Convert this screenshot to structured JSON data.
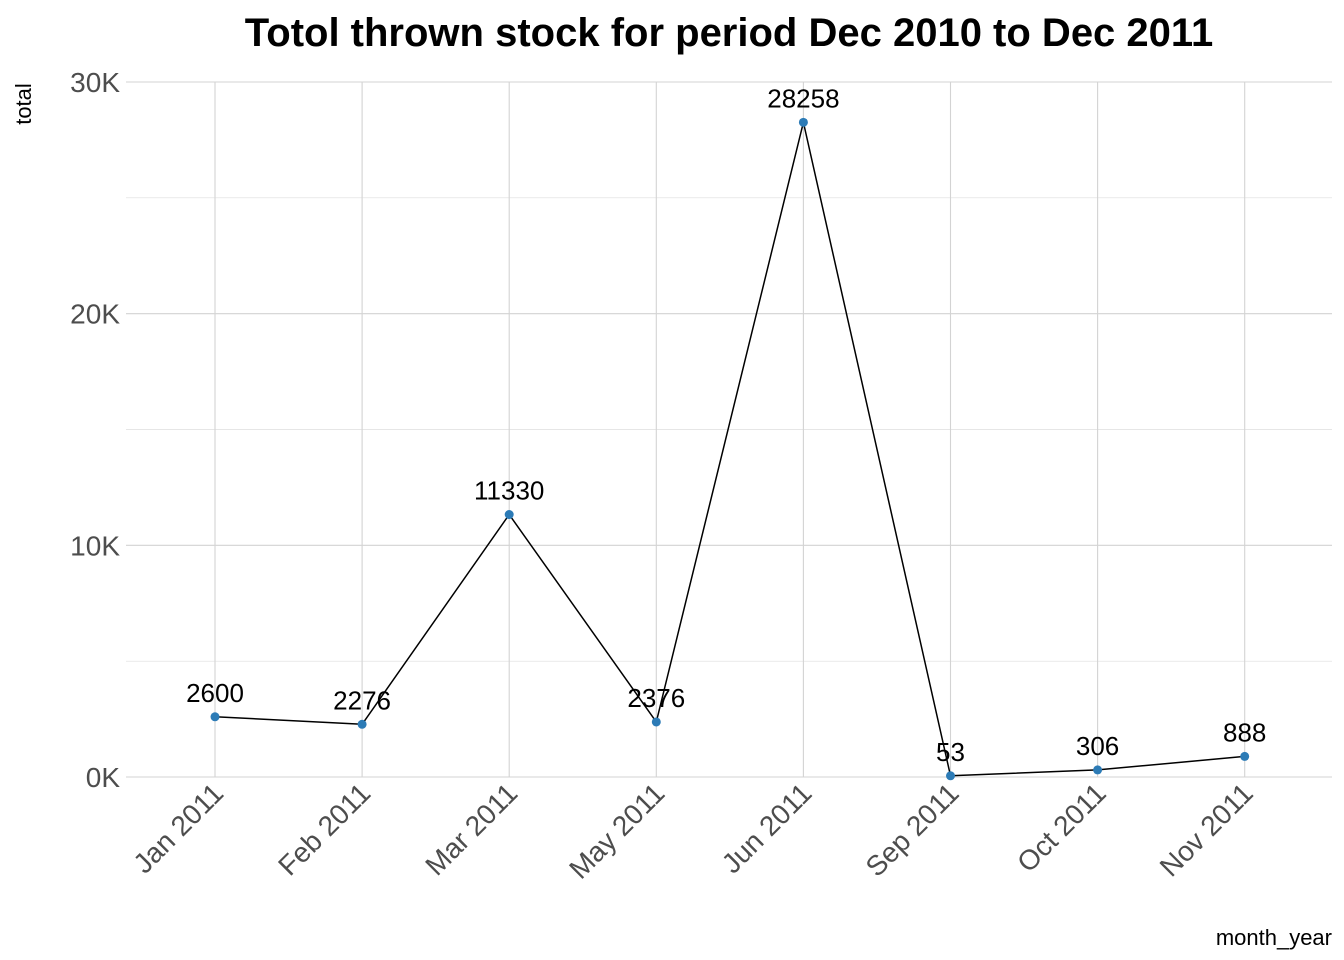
{
  "chart_data": {
    "type": "line",
    "title": "Totol thrown stock for period Dec 2010 to Dec 2011",
    "xlabel": "month_year",
    "ylabel": "total",
    "categories": [
      "Jan 2011",
      "Feb 2011",
      "Mar 2011",
      "May 2011",
      "Jun 2011",
      "Sep 2011",
      "Oct 2011",
      "Nov 2011"
    ],
    "values": [
      2600,
      2276,
      11330,
      2376,
      28258,
      53,
      306,
      888
    ],
    "data_labels": [
      "2600",
      "2276",
      "11330",
      "2376",
      "28258",
      "53",
      "306",
      "888"
    ],
    "yticks": [
      0,
      10000,
      20000,
      30000
    ],
    "ytick_labels": [
      "0K",
      "10K",
      "20K",
      "30K"
    ],
    "ylim": [
      0,
      30000
    ],
    "grid": true,
    "legend": "none",
    "colors": {
      "point": "#2c7bb6",
      "line": "#000000",
      "grid": "#d3d3d3",
      "tick_text": "#4d4d4d"
    }
  }
}
